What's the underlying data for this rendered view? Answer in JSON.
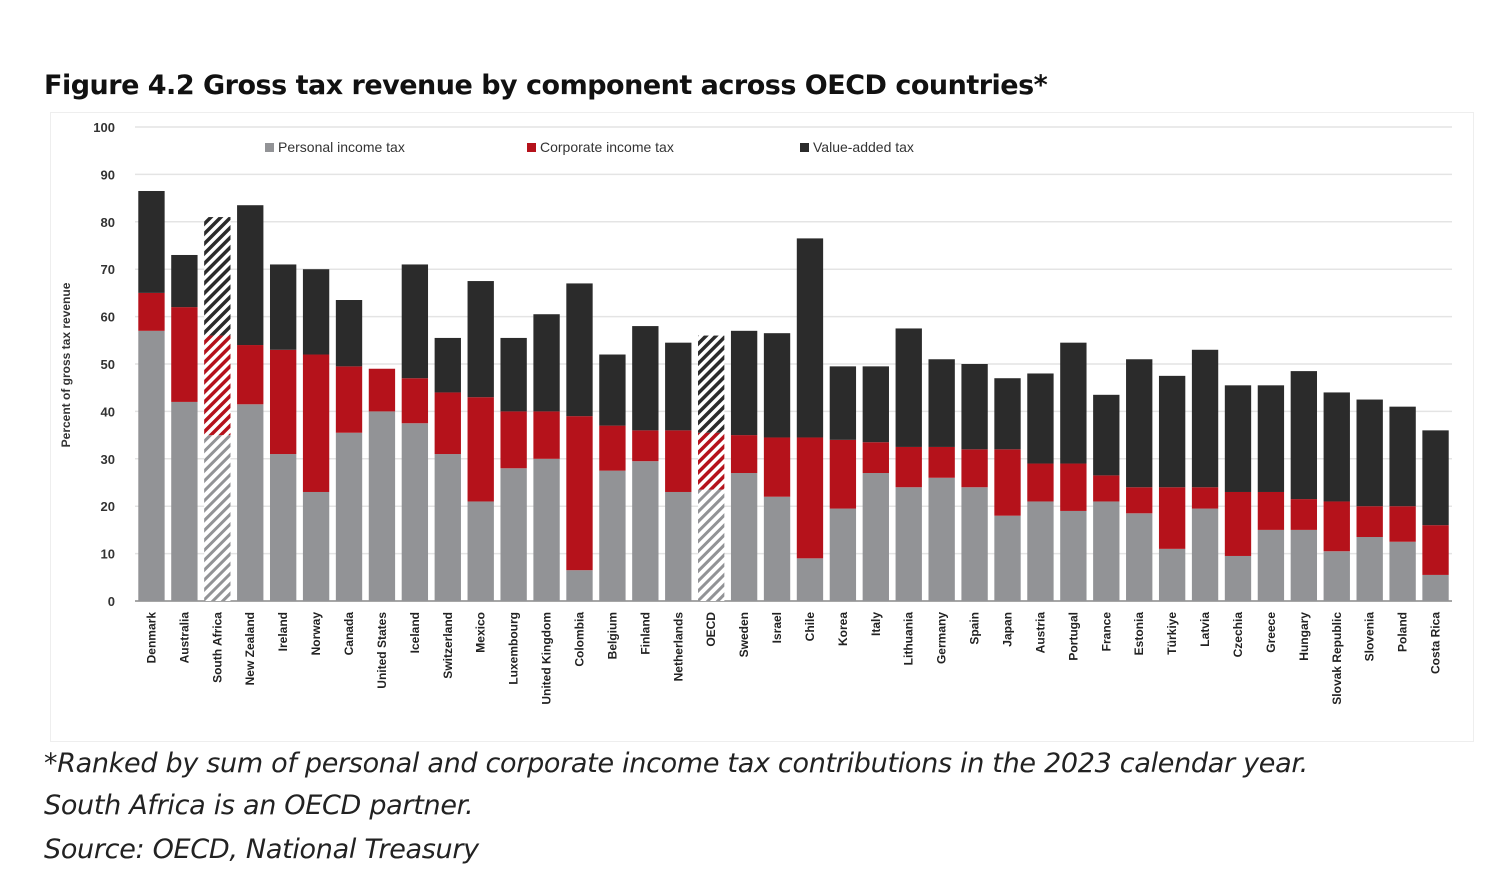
{
  "chart_data": {
    "type": "bar",
    "stacked": true,
    "title": "Figure 4.2 Gross tax revenue by component across OECD countries*",
    "ylabel": "Percent of gross tax revenue",
    "xlabel": "",
    "ylim": [
      0,
      100
    ],
    "yticks": [
      0,
      10,
      20,
      30,
      40,
      50,
      60,
      70,
      80,
      90,
      100
    ],
    "grid": true,
    "legend_position": "top",
    "categories": [
      "Denmark",
      "Australia",
      "South Africa",
      "New Zealand",
      "Ireland",
      "Norway",
      "Canada",
      "United States",
      "Iceland",
      "Switzerland",
      "Mexico",
      "Luxembourg",
      "United Kingdom",
      "Colombia",
      "Belgium",
      "Finland",
      "Netherlands",
      "OECD",
      "Sweden",
      "Israel",
      "Chile",
      "Korea",
      "Italy",
      "Lithuania",
      "Germany",
      "Spain",
      "Japan",
      "Austria",
      "Portugal",
      "France",
      "Estonia",
      "Türkiye",
      "Latvia",
      "Czechia",
      "Greece",
      "Hungary",
      "Slovak Republic",
      "Slovenia",
      "Poland",
      "Costa Rica"
    ],
    "hatched_categories": [
      "South Africa",
      "OECD"
    ],
    "series": [
      {
        "name": "Personal income tax",
        "color": "#929396",
        "values": [
          57,
          42,
          35,
          41.5,
          31,
          23,
          35.5,
          40,
          37.5,
          31,
          21,
          28,
          30,
          6.5,
          27.5,
          29.5,
          23,
          23.5,
          27,
          22,
          9,
          19.5,
          27,
          24,
          26,
          24,
          18,
          21,
          19,
          21,
          18.5,
          11,
          19.5,
          9.5,
          15,
          15,
          10.5,
          13.5,
          12.5,
          5.5
        ]
      },
      {
        "name": "Corporate income tax",
        "color": "#b5121b",
        "values": [
          8,
          20,
          21,
          12.5,
          22,
          29,
          14,
          9,
          9.5,
          13,
          22,
          12,
          10,
          32.5,
          9.5,
          6.5,
          13,
          12,
          8,
          12.5,
          25.5,
          14.5,
          6.5,
          8.5,
          6.5,
          8,
          14,
          8,
          10,
          5.5,
          5.5,
          13,
          4.5,
          13.5,
          8,
          6.5,
          10.5,
          6.5,
          7.5,
          10.5
        ]
      },
      {
        "name": "Value-added tax",
        "color": "#2b2b2b",
        "values": [
          21.5,
          11,
          25,
          29.5,
          18,
          18,
          14,
          0,
          24,
          11.5,
          24.5,
          15.5,
          20.5,
          28,
          15,
          22,
          18.5,
          20.5,
          22,
          22,
          42,
          15.5,
          16,
          25,
          18.5,
          18,
          15,
          19,
          25.5,
          17,
          27,
          23.5,
          29,
          22.5,
          22.5,
          27,
          23,
          22.5,
          21,
          20
        ]
      }
    ]
  },
  "notes": [
    "*Ranked by sum of personal and corporate income tax contributions in the 2023 calendar year.",
    "South  Africa is an OECD partner.",
    "Source: OECD, National Treasury"
  ]
}
